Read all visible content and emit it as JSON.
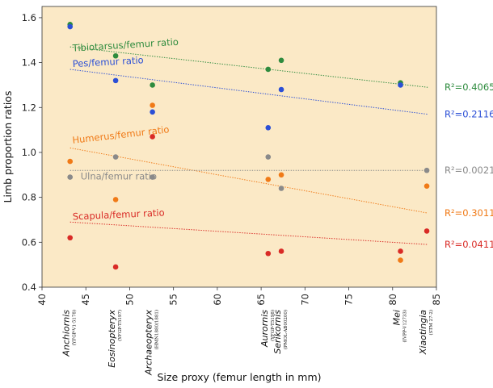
{
  "chart_data": {
    "type": "scatter",
    "xlabel": "Size proxy (femur length in mm)",
    "ylabel": "Limb proportion ratios",
    "xlim": [
      40,
      85
    ],
    "ylim": [
      0.4,
      1.65
    ],
    "xticks": [
      40,
      45,
      50,
      55,
      60,
      65,
      70,
      75,
      80,
      85
    ],
    "yticks": [
      0.4,
      0.6,
      0.8,
      1.0,
      1.2,
      1.4,
      1.6
    ],
    "xtick_labels": [
      "40",
      "45",
      "50",
      "55",
      "60",
      "65",
      "70",
      "75",
      "80",
      "85"
    ],
    "ytick_labels": [
      "0.4",
      "0.6",
      "0.8",
      "1.0",
      "1.2",
      "1.4",
      "1.6"
    ],
    "background_color": "#fbe9c6",
    "grid": false,
    "taxa": [
      {
        "name": "Anchiornis",
        "specimen": "(YFGP-V1-5178)",
        "x": 43.2
      },
      {
        "name": "Eosinopteryx",
        "specimen": "(YFGP-T5197)",
        "x": 48.4
      },
      {
        "name": "Archaeopteryx",
        "specimen": "(HMN1880/1881)",
        "x": 52.6
      },
      {
        "name": "Aurornis",
        "specimen": "(YFGP-T5198)",
        "x": 65.8
      },
      {
        "name": "Serikornis",
        "specimen": "(PMOL-AB00200)",
        "x": 67.3
      },
      {
        "name": "Mei",
        "specimen": "(IVPP-V12733)",
        "x": 80.9
      },
      {
        "name": "Xiaotingia",
        "specimen": "(STM 27-2)",
        "x": 83.9
      }
    ],
    "series": [
      {
        "name": "Tibiotarsus/femur ratio",
        "color": "#2e8b3e",
        "x": [
          43.2,
          48.4,
          52.6,
          65.8,
          67.3,
          80.9
        ],
        "y": [
          1.57,
          1.43,
          1.3,
          1.37,
          1.41,
          1.31
        ],
        "trend": {
          "y_start": 1.47,
          "y_end": 1.29,
          "r2": "R²=0.4065"
        }
      },
      {
        "name": "Pes/femur ratio",
        "color": "#2b4fd6",
        "x": [
          43.2,
          48.4,
          52.6,
          65.8,
          67.3,
          80.9
        ],
        "y": [
          1.56,
          1.32,
          1.18,
          1.11,
          1.28,
          1.3
        ],
        "trend": {
          "y_start": 1.37,
          "y_end": 1.17,
          "r2": "R²=0.2116"
        }
      },
      {
        "name": "Humerus/femur ratio",
        "color": "#f07a17",
        "x": [
          43.2,
          48.4,
          52.6,
          65.8,
          67.3,
          80.9,
          83.9
        ],
        "y": [
          0.96,
          0.79,
          1.21,
          0.88,
          0.9,
          0.52,
          0.85
        ],
        "trend": {
          "y_start": 1.02,
          "y_end": 0.73,
          "r2": "R²=0.3011"
        }
      },
      {
        "name": "Ulna/femur ratio",
        "color": "#8a8a8a",
        "x": [
          43.2,
          48.4,
          52.6,
          65.8,
          67.3,
          83.9
        ],
        "y": [
          0.89,
          0.98,
          0.89,
          0.98,
          0.84,
          0.92
        ],
        "trend": {
          "y_start": 0.92,
          "y_end": 0.92,
          "r2": "R²=0.0021"
        }
      },
      {
        "name": "Scapula/femur ratio",
        "color": "#d92b26",
        "x": [
          43.2,
          48.4,
          52.6,
          65.8,
          67.3,
          80.9,
          83.9
        ],
        "y": [
          0.62,
          0.49,
          1.07,
          0.55,
          0.56,
          0.56,
          0.65
        ],
        "trend": {
          "y_start": 0.69,
          "y_end": 0.59,
          "r2": "R²=0.0411"
        }
      }
    ]
  }
}
